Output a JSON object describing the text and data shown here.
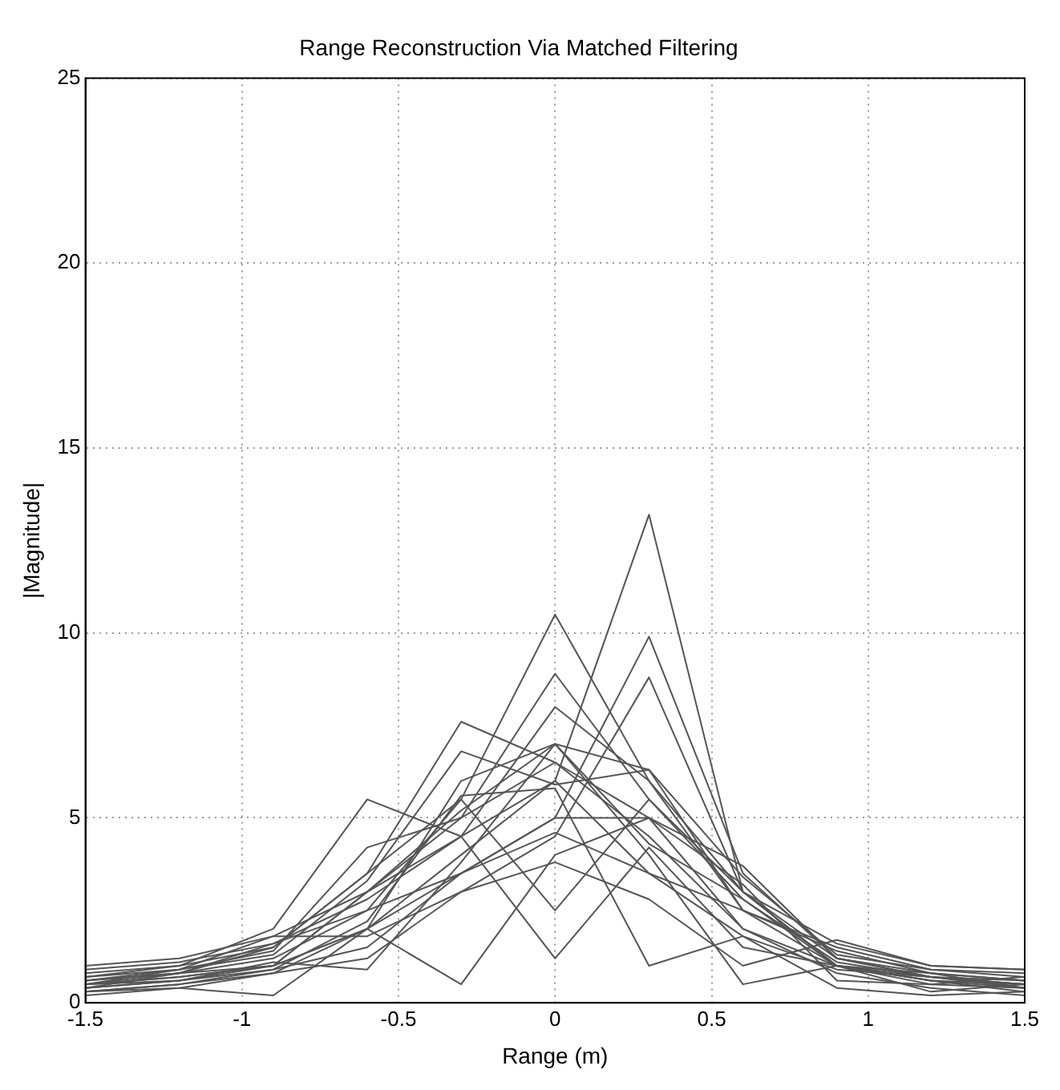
{
  "chart_data": {
    "type": "line",
    "title": "Range Reconstruction Via Matched Filtering",
    "xlabel": "Range (m)",
    "ylabel": "|Magnitude|",
    "x": [
      -1.5,
      -1.2,
      -0.9,
      -0.6,
      -0.3,
      0,
      0.3,
      0.6,
      0.9,
      1.2,
      1.5
    ],
    "xlim": [
      -1.5,
      1.5
    ],
    "xticks": [
      -1.5,
      -1,
      -0.5,
      0,
      0.5,
      1,
      1.5
    ],
    "ylim": [
      0,
      25
    ],
    "yticks": [
      0,
      5,
      10,
      15,
      20,
      25
    ],
    "grid": true,
    "legend": false,
    "marker": "none",
    "line_style": "solid",
    "series": [
      {
        "color": "#555555",
        "values": [
          0.5,
          0.7,
          1.0,
          2.0,
          4.0,
          6.0,
          13.2,
          3.0,
          1.0,
          0.6,
          0.4
        ]
      },
      {
        "color": "#555555",
        "values": [
          0.6,
          0.8,
          1.2,
          2.5,
          5.5,
          10.5,
          6.0,
          2.5,
          1.0,
          0.7,
          0.5
        ]
      },
      {
        "color": "#555555",
        "values": [
          0.4,
          0.6,
          0.9,
          1.5,
          3.5,
          5.0,
          9.9,
          3.5,
          1.2,
          0.7,
          0.5
        ]
      },
      {
        "color": "#555555",
        "values": [
          0.3,
          0.5,
          0.8,
          1.2,
          3.0,
          4.5,
          8.8,
          3.0,
          1.0,
          0.6,
          0.3
        ]
      },
      {
        "color": "#555555",
        "values": [
          0.5,
          0.8,
          1.0,
          3.0,
          5.0,
          8.9,
          5.5,
          2.8,
          1.0,
          0.8,
          0.6
        ]
      },
      {
        "color": "#555555",
        "values": [
          0.7,
          1.0,
          1.5,
          3.5,
          7.6,
          6.5,
          4.5,
          2.0,
          1.0,
          0.6,
          0.5
        ]
      },
      {
        "color": "#555555",
        "values": [
          0.8,
          1.0,
          2.0,
          5.5,
          4.5,
          6.0,
          3.5,
          1.8,
          0.9,
          0.7,
          0.6
        ]
      },
      {
        "color": "#555555",
        "values": [
          0.4,
          0.6,
          1.0,
          3.0,
          4.5,
          1.2,
          4.2,
          1.5,
          1.0,
          0.5,
          0.4
        ]
      },
      {
        "color": "#555555",
        "values": [
          0.6,
          0.8,
          1.5,
          3.5,
          5.5,
          2.5,
          5.5,
          3.0,
          1.2,
          0.8,
          0.6
        ]
      },
      {
        "color": "#555555",
        "values": [
          0.3,
          0.4,
          0.8,
          2.0,
          0.5,
          4.0,
          5.0,
          2.0,
          0.8,
          0.4,
          0.2
        ]
      },
      {
        "color": "#555555",
        "values": [
          0.5,
          0.7,
          1.0,
          2.0,
          3.5,
          5.0,
          5.0,
          3.7,
          1.2,
          0.7,
          0.5
        ]
      },
      {
        "color": "#555555",
        "values": [
          0.5,
          0.9,
          1.8,
          3.0,
          5.2,
          7.0,
          6.3,
          2.5,
          1.5,
          0.9,
          0.7
        ]
      },
      {
        "color": "#555555",
        "values": [
          0.9,
          1.1,
          1.6,
          2.8,
          4.5,
          8.0,
          6.0,
          3.0,
          1.6,
          1.0,
          0.9
        ]
      },
      {
        "color": "#555555",
        "values": [
          0.2,
          0.4,
          0.2,
          2.0,
          6.0,
          7.0,
          4.0,
          0.5,
          1.0,
          0.3,
          0.5
        ]
      },
      {
        "color": "#555555",
        "values": [
          0.7,
          0.9,
          1.3,
          3.3,
          6.8,
          5.9,
          6.3,
          3.4,
          1.3,
          0.9,
          0.8
        ]
      },
      {
        "color": "#555555",
        "values": [
          0.4,
          0.8,
          1.6,
          2.5,
          3.5,
          4.6,
          3.5,
          2.5,
          1.4,
          0.8,
          0.4
        ]
      },
      {
        "color": "#555555",
        "values": [
          1.0,
          1.2,
          1.8,
          1.8,
          3.0,
          3.8,
          2.8,
          1.0,
          1.7,
          1.0,
          0.9
        ]
      },
      {
        "color": "#555555",
        "values": [
          0.3,
          0.5,
          0.9,
          2.2,
          5.6,
          5.8,
          1.0,
          1.8,
          0.4,
          0.2,
          0.3
        ]
      },
      {
        "color": "#555555",
        "values": [
          0.6,
          0.9,
          1.4,
          4.2,
          5.0,
          6.5,
          5.0,
          3.2,
          0.6,
          0.5,
          0.7
        ]
      },
      {
        "color": "#555555",
        "values": [
          0.5,
          0.6,
          1.1,
          0.9,
          3.8,
          7.0,
          4.3,
          2.8,
          1.1,
          0.7,
          0.4
        ]
      }
    ]
  }
}
